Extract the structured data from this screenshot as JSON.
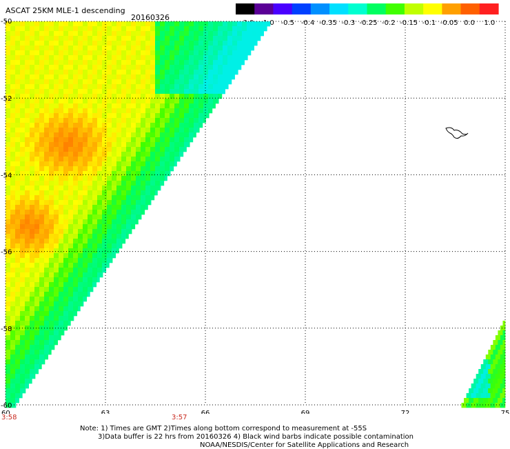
{
  "header": {
    "title": "ASCAT 25KM MLE-1 descending",
    "date": "20160326"
  },
  "colorbar": {
    "labels": [
      "-3.0",
      "-1.0",
      "-0.5",
      "-0.4",
      "-0.35",
      "-0.3",
      "-0.25",
      "-0.2",
      "-0.15",
      "-0.1",
      "-0.05",
      "0.0",
      "1.0"
    ],
    "colors": [
      "#000000",
      "#5a0096",
      "#4a00ff",
      "#0040ff",
      "#0090ff",
      "#00e0ff",
      "#00ffd0",
      "#00ff60",
      "#40ff00",
      "#c0ff00",
      "#ffff00",
      "#ffa000",
      "#ff6000",
      "#ff2020"
    ]
  },
  "chart_data": {
    "type": "heatmap",
    "title": "ASCAT 25KM MLE-1 descending 20160326",
    "x_ticks": [
      "60",
      "63",
      "66",
      "69",
      "72",
      "75"
    ],
    "y_ticks": [
      "-50",
      "-52",
      "-54",
      "-56",
      "-58",
      "-60"
    ],
    "xlim": [
      60,
      75
    ],
    "ylim": [
      -60,
      -50
    ],
    "grid": true,
    "time_labels": [
      {
        "x": 60,
        "text": "3:58"
      },
      {
        "x": 65.2,
        "text": "3:57"
      }
    ],
    "regions": [
      {
        "name": "main swath",
        "dominant_values": "-0.05 to 0.0 (west), -0.25 to -0.15 (east edge)"
      },
      {
        "name": "southeast swath fragment",
        "dominant_values": "-0.3 to -0.15"
      }
    ]
  },
  "notes": {
    "line1": "Note: 1) Times are GMT 2)Times along bottom correspond to measurement at -55S",
    "line2": "3)Data buffer is 22 hrs from 20160326 4) Black wind barbs indicate possible contamination",
    "line3": "NOAA/NESDIS/Center for Satellite Applications and Research"
  }
}
